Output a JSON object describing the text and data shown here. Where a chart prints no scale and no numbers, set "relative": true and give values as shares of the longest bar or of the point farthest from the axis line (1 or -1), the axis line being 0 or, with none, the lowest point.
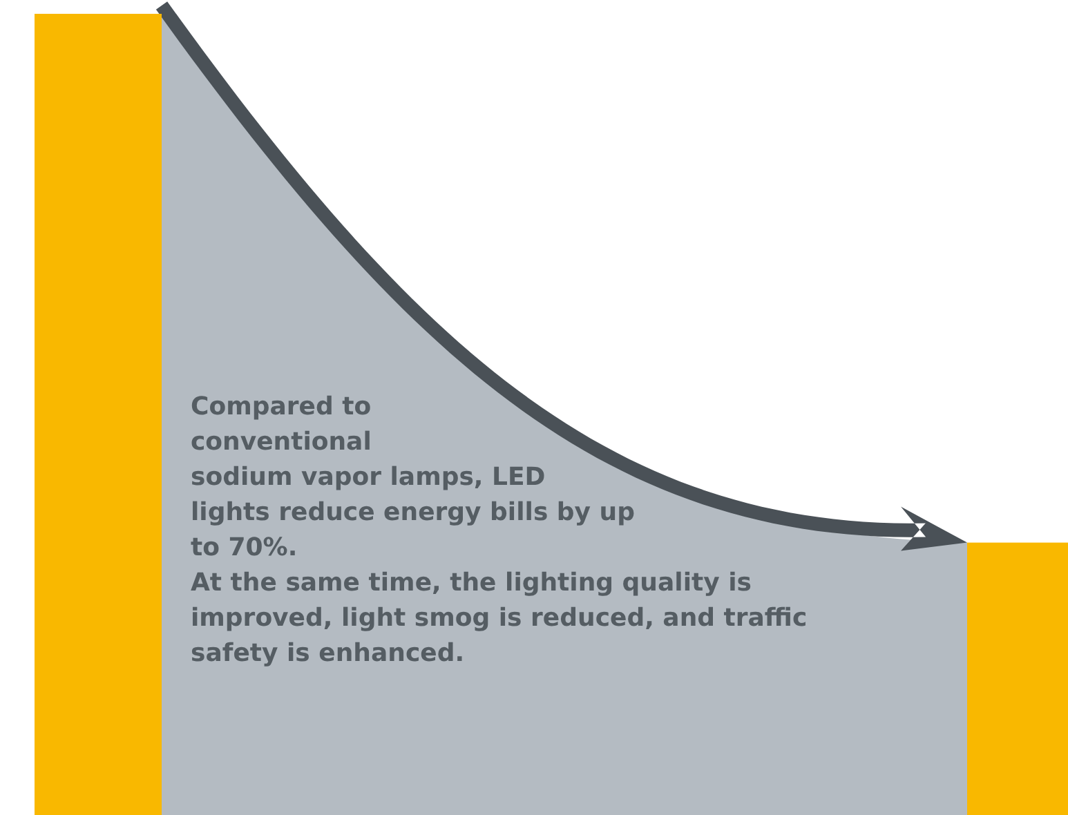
{
  "chart_data": {
    "type": "bar",
    "relative": true,
    "categories": [
      null,
      null
    ],
    "values": [
      1,
      0.34
    ],
    "color": "#f9b800",
    "annotations": [
      "Compared to\nconventional\nsodium vapor lamps, LED\nlights reduce energy bills by up\nto 70%.\nAt the same time, the lighting quality is\nimproved, light smog is reduced, and traffic\nsafety is enhanced."
    ]
  }
}
